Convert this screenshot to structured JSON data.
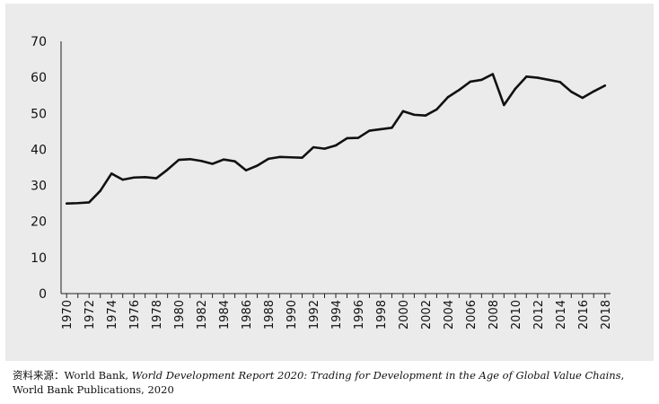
{
  "chart_data": {
    "type": "line",
    "x": [
      1970,
      1971,
      1972,
      1973,
      1974,
      1975,
      1976,
      1977,
      1978,
      1979,
      1980,
      1981,
      1982,
      1983,
      1984,
      1985,
      1986,
      1987,
      1988,
      1989,
      1990,
      1991,
      1992,
      1993,
      1994,
      1995,
      1996,
      1997,
      1998,
      1999,
      2000,
      2001,
      2002,
      2003,
      2004,
      2005,
      2006,
      2007,
      2008,
      2009,
      2010,
      2011,
      2012,
      2013,
      2014,
      2015,
      2016,
      2017,
      2018
    ],
    "x_tick_labels": [
      "1970",
      "1972",
      "1974",
      "1976",
      "1978",
      "1980",
      "1982",
      "1984",
      "1986",
      "1988",
      "1990",
      "1992",
      "1994",
      "1996",
      "1998",
      "2000",
      "2002",
      "2004",
      "2006",
      "2008",
      "2010",
      "2012",
      "2014",
      "2016",
      "2018"
    ],
    "series": [
      {
        "values": [
          25.0,
          25.1,
          25.3,
          28.5,
          33.3,
          31.6,
          32.2,
          32.3,
          32.0,
          34.4,
          37.1,
          37.3,
          36.8,
          36.0,
          37.2,
          36.7,
          34.2,
          35.5,
          37.4,
          37.9,
          37.8,
          37.7,
          40.6,
          40.2,
          41.1,
          43.1,
          43.2,
          45.2,
          45.6,
          46.0,
          50.6,
          49.6,
          49.4,
          51.1,
          54.5,
          56.5,
          58.8,
          59.3,
          60.9,
          52.3,
          56.8,
          60.2,
          59.9,
          59.3,
          58.7,
          56.0,
          54.3,
          56.1,
          57.7
        ],
        "color": "#111111"
      }
    ],
    "y_ticks": [
      0,
      10,
      20,
      30,
      40,
      50,
      60,
      70
    ],
    "ylim": [
      0,
      70
    ],
    "xlim": [
      1970,
      2018
    ],
    "title": "",
    "xlabel": "",
    "ylabel": "",
    "grid": false,
    "legend": false,
    "background": "#ebebeb"
  },
  "caption": {
    "source_label": "资料来源：",
    "publisher": "World Bank, ",
    "report_title": "World Development Report 2020: Trading for Development in the Age of Global Value Chains",
    "publisher_suffix": ", World Bank Publications, 2020"
  }
}
